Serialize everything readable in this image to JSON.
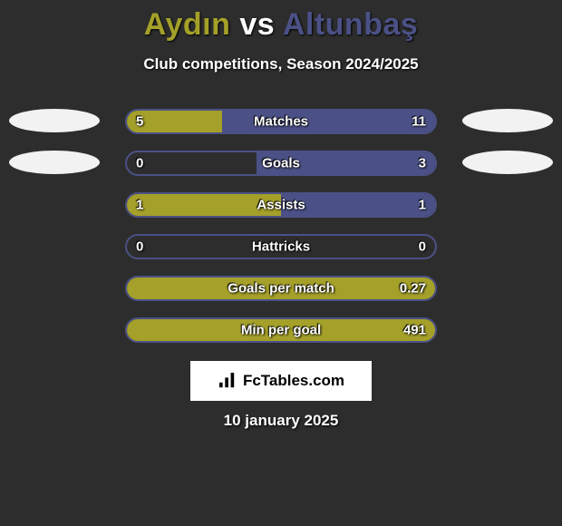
{
  "title": {
    "player1": "Aydın",
    "vs": "vs",
    "player2": "Altunbaş"
  },
  "subtitle": "Club competitions, Season 2024/2025",
  "colors": {
    "p1": "#a4a029",
    "p2": "#4b5186",
    "badge": "#f2f2f2"
  },
  "stats": [
    {
      "label": "Matches",
      "left_val": "5",
      "right_val": "11",
      "left_pct": 31,
      "right_pct": 69,
      "side_badges": true
    },
    {
      "label": "Goals",
      "left_val": "0",
      "right_val": "3",
      "left_pct": 0,
      "right_pct": 58,
      "side_badges": true
    },
    {
      "label": "Assists",
      "left_val": "1",
      "right_val": "1",
      "left_pct": 50,
      "right_pct": 50,
      "side_badges": false
    },
    {
      "label": "Hattricks",
      "left_val": "0",
      "right_val": "0",
      "left_pct": 0,
      "right_pct": 0,
      "side_badges": false
    },
    {
      "label": "Goals per match",
      "left_val": "",
      "right_val": "0.27",
      "left_pct": 100,
      "right_pct": 0,
      "side_badges": false
    },
    {
      "label": "Min per goal",
      "left_val": "",
      "right_val": "491",
      "left_pct": 100,
      "right_pct": 0,
      "side_badges": false
    }
  ],
  "site_label": "FcTables.com",
  "date": "10 january 2025"
}
